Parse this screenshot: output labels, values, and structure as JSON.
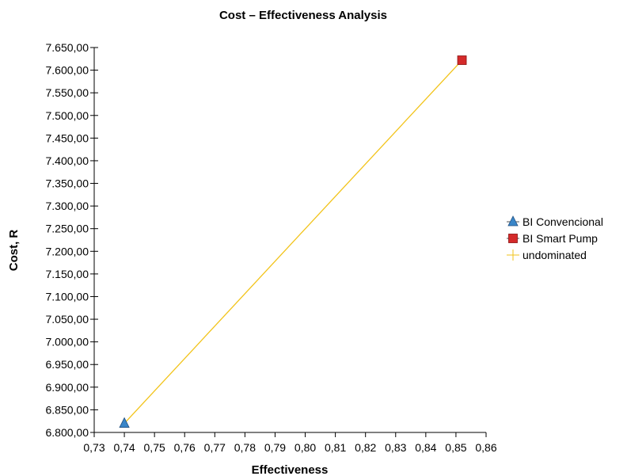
{
  "chart_data": {
    "type": "scatter",
    "title": "Cost – Effectiveness Analysis",
    "xlabel": "Effectiveness",
    "ylabel": "Cost, R",
    "xlim": [
      0.73,
      0.86
    ],
    "ylim": [
      6800,
      7650
    ],
    "x_ticks": [
      "0,73",
      "0,74",
      "0,75",
      "0,76",
      "0,77",
      "0,78",
      "0,79",
      "0,80",
      "0,81",
      "0,82",
      "0,83",
      "0,84",
      "0,85",
      "0,86"
    ],
    "y_ticks": [
      "7.650,00",
      "7.600,00",
      "7.550,00",
      "7.500,00",
      "7.450,00",
      "7.400,00",
      "7.350,00",
      "7.300,00",
      "7.250,00",
      "7.200,00",
      "7.150,00",
      "7.100,00",
      "7.050,00",
      "7.000,00",
      "6.950,00",
      "6.900,00",
      "6.850,00",
      "6.800,00"
    ],
    "grid": false,
    "legend_position": "right",
    "series": [
      {
        "name": "BI Convencional",
        "marker": "triangle",
        "color": "#3a86c8",
        "points": [
          {
            "x": 0.74,
            "y": 6820
          }
        ]
      },
      {
        "name": "BI Smart Pump",
        "marker": "square",
        "color": "#d42a2a",
        "points": [
          {
            "x": 0.852,
            "y": 7622
          }
        ]
      },
      {
        "name": "undominated",
        "marker": "line",
        "color": "#f2c318",
        "points": [
          {
            "x": 0.74,
            "y": 6820
          },
          {
            "x": 0.852,
            "y": 7622
          }
        ]
      }
    ]
  }
}
